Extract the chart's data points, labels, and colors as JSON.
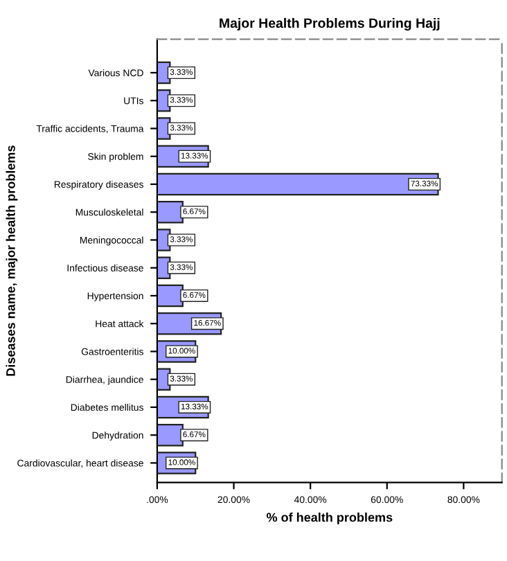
{
  "chart_data": {
    "type": "bar",
    "orientation": "horizontal",
    "title": "Major Health Problems During Hajj",
    "xlabel": "% of health problems",
    "ylabel": "Diseases name, major health problems",
    "categories": [
      "Various NCD",
      "UTIs",
      "Traffic accidents, Trauma",
      "Skin problem",
      "Respiratory diseases",
      "Musculoskeletal",
      "Meningococcal",
      "Infectious disease",
      "Hypertension",
      "Heat attack",
      "Gastroenteritis",
      "Diarrhea, jaundice",
      "Diabetes mellitus",
      "Dehydration",
      "Cardiovascular, heart disease"
    ],
    "values": [
      3.33,
      3.33,
      3.33,
      13.33,
      73.33,
      6.67,
      3.33,
      3.33,
      6.67,
      16.67,
      10.0,
      3.33,
      13.33,
      6.67,
      10.0
    ],
    "value_labels": [
      "3.33%",
      "3.33%",
      "3.33%",
      "13.33%",
      "73.33%",
      "6.67%",
      "3.33%",
      "3.33%",
      "6.67%",
      "16.67%",
      "10.00%",
      "3.33%",
      "13.33%",
      "6.67%",
      "10.00%"
    ],
    "color": "#9999ff",
    "xlim": [
      0,
      90
    ],
    "xticks": [
      {
        "value": 0,
        "label": ".00%"
      },
      {
        "value": 20,
        "label": "20.00%"
      },
      {
        "value": 40,
        "label": "40.00%"
      },
      {
        "value": 60,
        "label": "60.00%"
      },
      {
        "value": 80,
        "label": "80.00%"
      }
    ],
    "grid": false,
    "legend": false
  }
}
